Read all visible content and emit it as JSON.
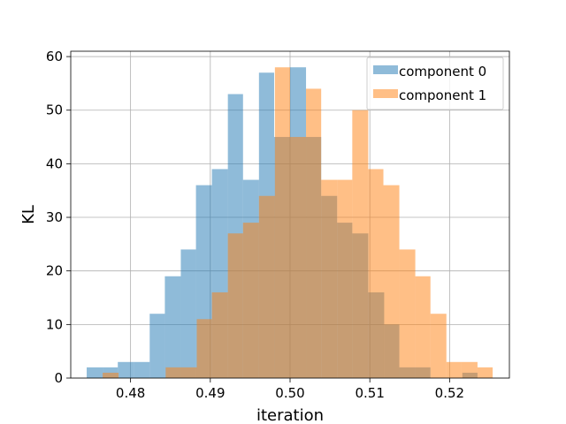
{
  "chart_data": {
    "type": "bar",
    "title": "",
    "xlabel": "iteration",
    "ylabel": "KL",
    "xlim": [
      0.4725,
      0.5275
    ],
    "ylim": [
      0,
      61.0
    ],
    "xticks": [
      0.48,
      0.49,
      0.5,
      0.51,
      0.52
    ],
    "xtick_labels": [
      "0.48",
      "0.49",
      "0.50",
      "0.51",
      "0.52"
    ],
    "yticks": [
      0,
      10,
      20,
      30,
      40,
      50,
      60
    ],
    "ytick_labels": [
      "0",
      "10",
      "20",
      "30",
      "40",
      "50",
      "60"
    ],
    "grid": true,
    "legend_position": "upper right",
    "series": [
      {
        "name": "component 0",
        "color": "#1f77b4",
        "alpha": 0.5,
        "bin_edges": [
          0.4745,
          0.4765,
          0.4784,
          0.4804,
          0.4824,
          0.4843,
          0.4863,
          0.4882,
          0.4902,
          0.4922,
          0.4941,
          0.4961,
          0.498,
          0.5,
          0.502,
          0.5039,
          0.5059,
          0.5078,
          0.5098,
          0.5118,
          0.5137,
          0.5157,
          0.5176,
          0.5196,
          0.5216,
          0.5235
        ],
        "counts": [
          2,
          2,
          3,
          3,
          12,
          19,
          24,
          36,
          39,
          53,
          37,
          57,
          45,
          58,
          45,
          34,
          29,
          27,
          16,
          10,
          2,
          2,
          0,
          0,
          1
        ]
      },
      {
        "name": "component 1",
        "color": "#ff7f0e",
        "alpha": 0.5,
        "bin_edges": [
          0.4765,
          0.4785,
          0.4804,
          0.4824,
          0.4844,
          0.4863,
          0.4883,
          0.4902,
          0.4922,
          0.4941,
          0.4961,
          0.4981,
          0.5,
          0.502,
          0.5039,
          0.5059,
          0.5078,
          0.5098,
          0.5117,
          0.5137,
          0.5157,
          0.5176,
          0.5196,
          0.5215,
          0.5235,
          0.5254
        ],
        "counts": [
          1,
          0,
          0,
          0,
          2,
          2,
          11,
          16,
          27,
          29,
          34,
          58,
          45,
          54,
          37,
          37,
          50,
          39,
          36,
          24,
          19,
          12,
          3,
          3,
          2
        ]
      }
    ]
  }
}
